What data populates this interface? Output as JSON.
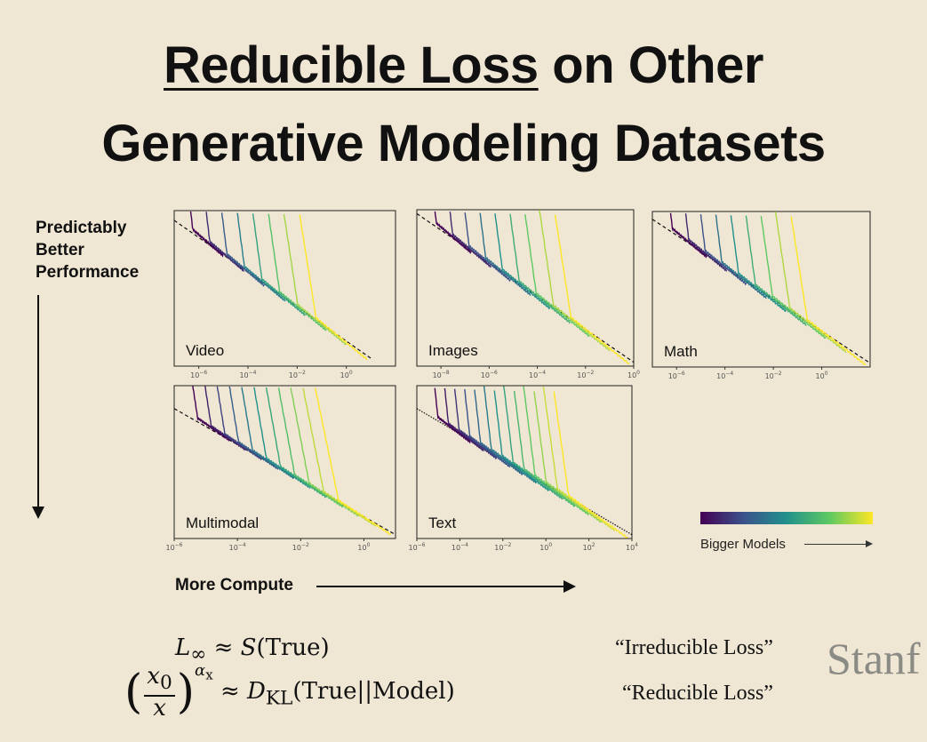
{
  "title": {
    "part1": "Reducible Loss",
    "part2": " on Other",
    "line2": "Generative Modeling Datasets"
  },
  "y_axis_label": [
    "Predictably",
    "Better",
    "Performance"
  ],
  "x_axis_label": "More Compute",
  "colorbar": {
    "label": "Bigger Models",
    "colors": [
      "#440154",
      "#3b528b",
      "#21918c",
      "#5ec962",
      "#fde725"
    ]
  },
  "chart_data": [
    {
      "type": "line",
      "title": "Video",
      "x_ticks": [
        -6,
        -4,
        -2,
        0
      ],
      "xlim": [
        -7,
        2
      ],
      "ylim": [
        -4,
        0
      ],
      "xscale": "log10",
      "frontier": [
        [
          -7,
          -0.25
        ],
        [
          1.0,
          -3.8
        ]
      ],
      "series_count": 8
    },
    {
      "type": "line",
      "title": "Images",
      "x_ticks": [
        -8,
        -6,
        -4,
        -2,
        0
      ],
      "xlim": [
        -9,
        0
      ],
      "ylim": [
        -4,
        0
      ],
      "xscale": "log10",
      "frontier": [
        [
          -9,
          -0.1
        ],
        [
          0.0,
          -3.9
        ]
      ],
      "series_count": 9
    },
    {
      "type": "line",
      "title": "Math",
      "x_ticks": [
        -6,
        -4,
        -2,
        0
      ],
      "xlim": [
        -7,
        2
      ],
      "ylim": [
        -4,
        0
      ],
      "xscale": "log10",
      "frontier": [
        [
          -7,
          -0.2
        ],
        [
          2.0,
          -3.9
        ]
      ],
      "series_count": 9
    },
    {
      "type": "line",
      "title": "Multimodal",
      "x_ticks": [
        -6,
        -4,
        -2,
        0
      ],
      "xlim": [
        -6,
        1
      ],
      "ylim": [
        -4,
        0
      ],
      "xscale": "log10",
      "frontier": [
        [
          -6,
          -0.6
        ],
        [
          1.0,
          -3.9
        ]
      ],
      "series_count": 11
    },
    {
      "type": "line",
      "title": "Text",
      "x_ticks": [
        -6,
        -4,
        -2,
        0,
        2,
        4
      ],
      "xlim": [
        -6,
        4
      ],
      "ylim": [
        -4,
        0
      ],
      "xscale": "log10",
      "frontier": [
        [
          -6,
          -0.6
        ],
        [
          4.0,
          -3.9
        ]
      ],
      "series_count": 13
    }
  ],
  "equations": {
    "eq1_lhs": "L",
    "eq1_sub": "∞",
    "eq1_rel": "≈",
    "eq1_fn": "S",
    "eq1_arg": "(True)",
    "eq2_num": "x",
    "eq2_num_sub": "0",
    "eq2_den": "x",
    "eq2_exp": "α",
    "eq2_exp_sub": "x",
    "eq2_rel": "≈",
    "eq2_fn": "D",
    "eq2_fn_sub": "KL",
    "eq2_arg": "(True||Model)"
  },
  "labels": {
    "irreducible": "“Irreducible Loss”",
    "reducible": "“Reducible Loss”"
  },
  "logo": "Stanf"
}
